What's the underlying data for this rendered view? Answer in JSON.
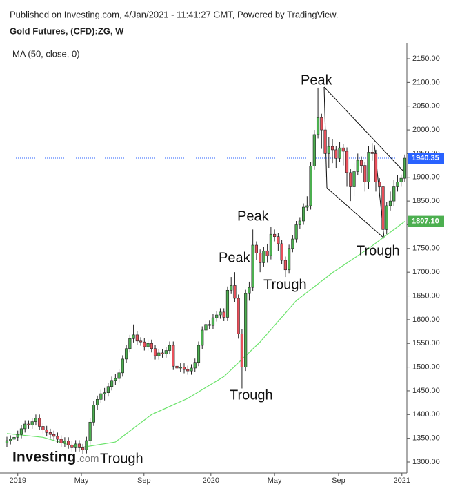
{
  "header": {
    "published": "Published on Investing.com, 4/Jan/2021 - 11:41:27 GMT, Powered by TradingView.",
    "symbol": "Gold Futures, (CFD):ZG, W",
    "logo_main": "Investing",
    "logo_suffix": ".com"
  },
  "chart_data": {
    "type": "candlestick",
    "up_color": "#4caf50",
    "down_color": "#e8505b",
    "open": [
      1340,
      1345,
      1348,
      1352,
      1358,
      1370,
      1380,
      1378,
      1385,
      1392,
      1375,
      1368,
      1362,
      1358,
      1354,
      1348,
      1340,
      1344,
      1336,
      1330,
      1338,
      1330,
      1326,
      1345,
      1384,
      1420,
      1432,
      1444,
      1446,
      1459,
      1472,
      1476,
      1488,
      1517,
      1539,
      1560,
      1568,
      1555,
      1553,
      1543,
      1550,
      1539,
      1524,
      1530,
      1528,
      1535,
      1546,
      1502,
      1498,
      1500,
      1495,
      1492,
      1498,
      1510,
      1546,
      1578,
      1590,
      1588,
      1604,
      1610,
      1616,
      1605,
      1662,
      1672,
      1645,
      1570,
      1500,
      1655,
      1668,
      1757,
      1740,
      1720,
      1745,
      1735,
      1780,
      1775,
      1760,
      1725,
      1705,
      1750,
      1770,
      1800,
      1808,
      1837,
      1840,
      1924,
      1990,
      2026,
      2000,
      1950,
      1965,
      1958,
      1940,
      1962,
      1955,
      1910,
      1880,
      1912,
      1936,
      1925,
      1890,
      1953,
      1950,
      1890,
      1880,
      1790,
      1840,
      1850,
      1880,
      1890,
      1898
    ],
    "high": [
      1353,
      1356,
      1360,
      1366,
      1378,
      1388,
      1388,
      1393,
      1400,
      1400,
      1383,
      1376,
      1370,
      1366,
      1362,
      1356,
      1352,
      1352,
      1344,
      1346,
      1346,
      1338,
      1353,
      1392,
      1428,
      1440,
      1452,
      1456,
      1467,
      1480,
      1486,
      1496,
      1525,
      1547,
      1568,
      1590,
      1576,
      1563,
      1561,
      1558,
      1558,
      1547,
      1538,
      1538,
      1543,
      1554,
      1554,
      1510,
      1508,
      1508,
      1503,
      1506,
      1518,
      1554,
      1586,
      1598,
      1598,
      1612,
      1618,
      1624,
      1624,
      1670,
      1690,
      1700,
      1653,
      1580,
      1663,
      1680,
      1790,
      1765,
      1748,
      1753,
      1760,
      1795,
      1790,
      1783,
      1768,
      1733,
      1758,
      1778,
      1808,
      1816,
      1845,
      1860,
      1932,
      2000,
      2089,
      2034,
      2015,
      1985,
      1980,
      1966,
      1975,
      1970,
      1963,
      1918,
      1930,
      1950,
      1944,
      1933,
      1966,
      1972,
      1958,
      1898,
      1888,
      1848,
      1870,
      1895,
      1905,
      1906,
      1948
    ],
    "low": [
      1332,
      1337,
      1340,
      1344,
      1350,
      1362,
      1370,
      1370,
      1377,
      1367,
      1360,
      1354,
      1350,
      1346,
      1340,
      1332,
      1332,
      1328,
      1322,
      1322,
      1322,
      1316,
      1318,
      1337,
      1376,
      1410,
      1424,
      1430,
      1438,
      1451,
      1462,
      1468,
      1480,
      1509,
      1531,
      1552,
      1547,
      1545,
      1535,
      1535,
      1531,
      1516,
      1516,
      1520,
      1520,
      1527,
      1494,
      1490,
      1490,
      1487,
      1484,
      1484,
      1490,
      1502,
      1538,
      1570,
      1580,
      1580,
      1596,
      1602,
      1597,
      1597,
      1654,
      1637,
      1560,
      1455,
      1492,
      1640,
      1660,
      1725,
      1700,
      1712,
      1720,
      1727,
      1765,
      1745,
      1717,
      1690,
      1697,
      1742,
      1762,
      1792,
      1800,
      1829,
      1832,
      1916,
      1982,
      1960,
      1900,
      1920,
      1930,
      1920,
      1932,
      1925,
      1880,
      1850,
      1860,
      1904,
      1910,
      1870,
      1875,
      1935,
      1870,
      1860,
      1765,
      1780,
      1830,
      1840,
      1870,
      1880,
      1890
    ],
    "close": [
      1345,
      1348,
      1352,
      1358,
      1370,
      1380,
      1378,
      1385,
      1392,
      1375,
      1368,
      1362,
      1358,
      1354,
      1348,
      1340,
      1344,
      1336,
      1330,
      1338,
      1330,
      1326,
      1345,
      1384,
      1420,
      1432,
      1444,
      1446,
      1459,
      1472,
      1476,
      1488,
      1517,
      1539,
      1560,
      1568,
      1555,
      1553,
      1543,
      1550,
      1539,
      1524,
      1530,
      1528,
      1535,
      1546,
      1502,
      1498,
      1500,
      1495,
      1492,
      1498,
      1510,
      1546,
      1578,
      1590,
      1588,
      1604,
      1610,
      1616,
      1605,
      1662,
      1672,
      1645,
      1570,
      1500,
      1655,
      1668,
      1757,
      1740,
      1720,
      1745,
      1735,
      1780,
      1775,
      1760,
      1725,
      1705,
      1750,
      1770,
      1800,
      1808,
      1837,
      1840,
      1924,
      1990,
      2026,
      2000,
      1950,
      1965,
      1958,
      1940,
      1962,
      1955,
      1910,
      1880,
      1912,
      1936,
      1925,
      1890,
      1953,
      1950,
      1890,
      1880,
      1790,
      1840,
      1850,
      1880,
      1890,
      1898,
      1940.35
    ],
    "ma": {
      "name": "MA (50, close, 0)",
      "color": "#6be36b",
      "x": [
        0,
        10,
        20,
        30,
        40,
        50,
        60,
        70,
        80,
        90,
        100,
        110
      ],
      "values": [
        1360,
        1352,
        1330,
        1342,
        1400,
        1434,
        1480,
        1553,
        1640,
        1699,
        1750,
        1807.1
      ],
      "last_label": {
        "value": 1807.1,
        "label": "1807.10"
      }
    },
    "last_price_color": "#2962ff",
    "annotations": [
      "Peak",
      "Peak",
      "Peak",
      "Trough",
      "Trough",
      "Trough",
      "Trough"
    ],
    "xlim": [
      -0.38,
      110.58
    ],
    "xticks": [
      {
        "value": 3,
        "label": "2019"
      },
      {
        "value": 20.6,
        "label": "May"
      },
      {
        "value": 37.9,
        "label": "Sep"
      },
      {
        "value": 56.4,
        "label": "2020"
      },
      {
        "value": 74,
        "label": "May"
      },
      {
        "value": 91.7,
        "label": "Sep"
      },
      {
        "value": 109.2,
        "label": "2021"
      }
    ],
    "ylim": [
      1276.7,
      2183.5
    ],
    "yticks": [
      {
        "value": 1300,
        "label": "1300.00"
      },
      {
        "value": 1350,
        "label": "1350.00"
      },
      {
        "value": 1400,
        "label": "1400.00"
      },
      {
        "value": 1450,
        "label": "1450.00"
      },
      {
        "value": 1500,
        "label": "1500.00"
      },
      {
        "value": 1550,
        "label": "1550.00"
      },
      {
        "value": 1600,
        "label": "1600.00"
      },
      {
        "value": 1650,
        "label": "1650.00"
      },
      {
        "value": 1700,
        "label": "1700.00"
      },
      {
        "value": 1750,
        "label": "1750.00"
      },
      {
        "value": 1800,
        "label": "1800.00"
      },
      {
        "value": 1850,
        "label": "1850.00"
      },
      {
        "value": 1900,
        "label": "1900.00"
      },
      {
        "value": 1950,
        "label": "1950.00"
      },
      {
        "value": 2000,
        "label": "2000.00"
      },
      {
        "value": 2050,
        "label": "2050.00"
      },
      {
        "value": 2100,
        "label": "2100.00"
      },
      {
        "value": 2150,
        "label": "2150.00"
      }
    ]
  }
}
